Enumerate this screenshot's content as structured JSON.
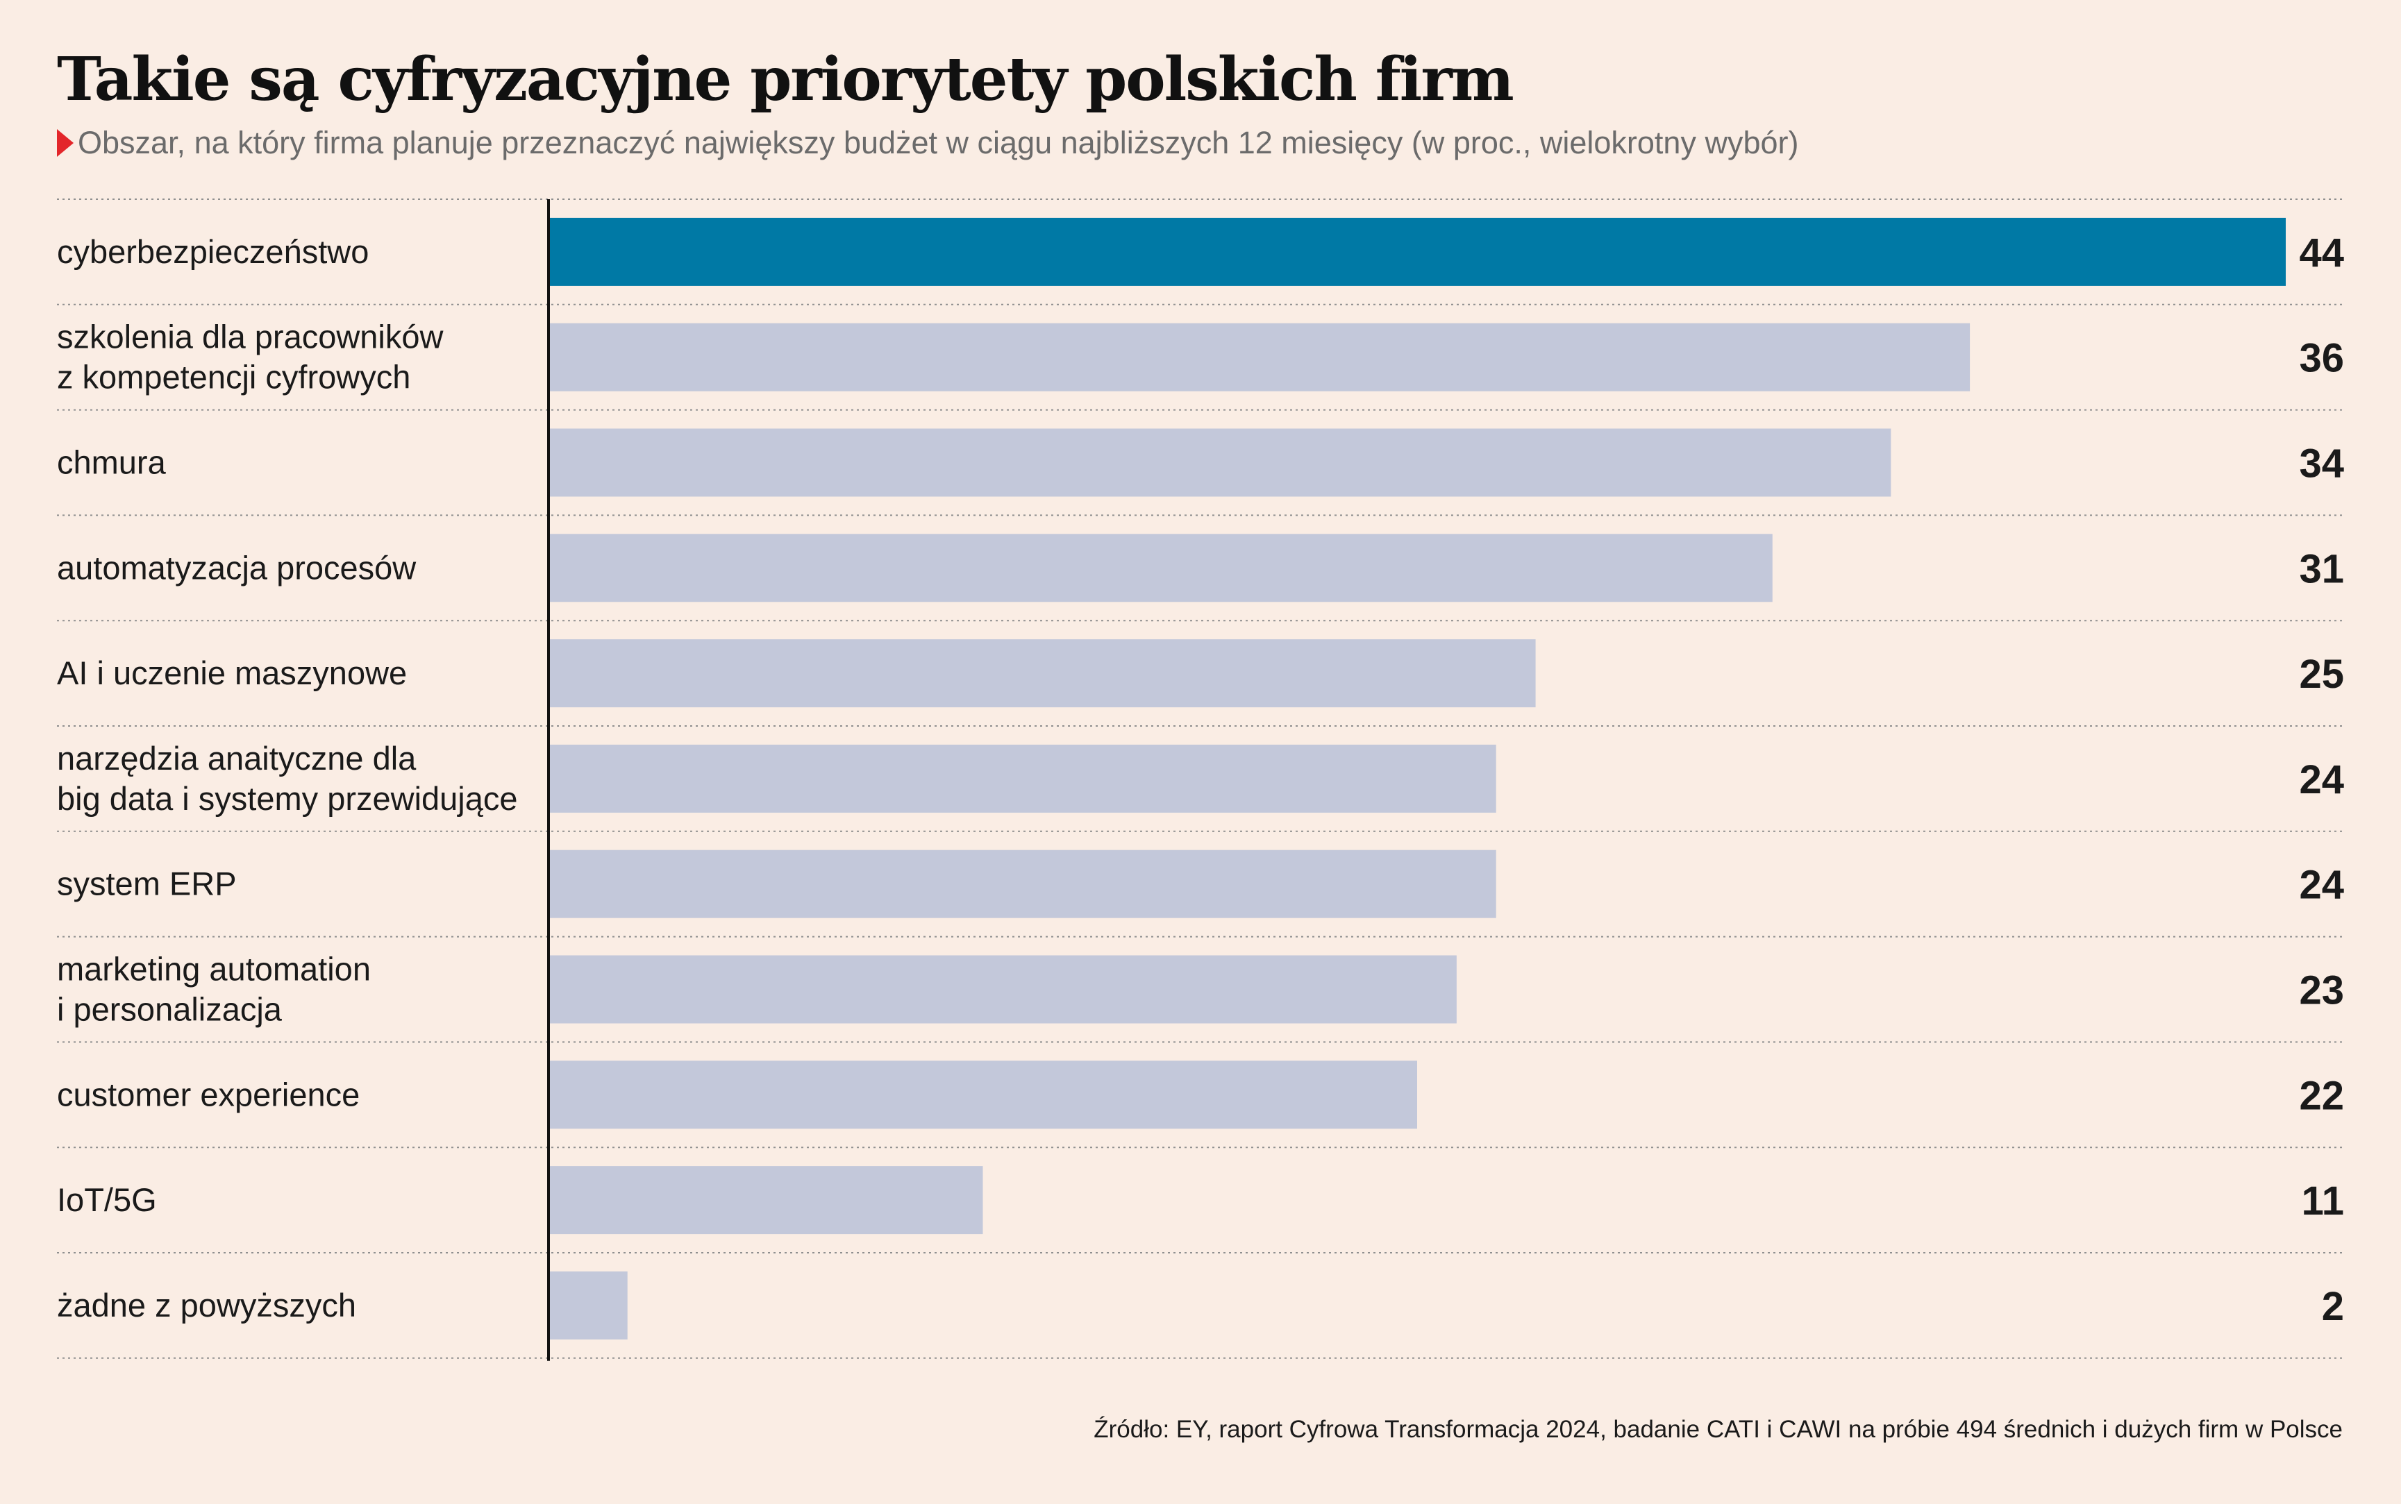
{
  "header": {
    "title": "Takie są cyfryzacyjne priorytety polskich firm",
    "subtitle": "Obszar, na który firma planuje przeznaczyć największy budżet w ciągu najbliższych 12 miesięcy (w proc., wielokrotny wybór)"
  },
  "colors": {
    "background": "#faede4",
    "highlight_bar": "#0079a5",
    "bar": "#c3c8da",
    "marker": "#e3262a"
  },
  "chart_data": {
    "type": "bar",
    "orientation": "horizontal",
    "categories": [
      [
        "cyberbezpieczeństwo"
      ],
      [
        "szkolenia dla pracowników",
        "z kompetencji cyfrowych"
      ],
      [
        "chmura"
      ],
      [
        "automatyzacja procesów"
      ],
      [
        "AI i uczenie maszynowe"
      ],
      [
        "narzędzia anaityczne dla",
        "big data i systemy przewidujące"
      ],
      [
        "system ERP"
      ],
      [
        "marketing automation",
        "i personalizacja"
      ],
      [
        "customer experience"
      ],
      [
        "IoT/5G"
      ],
      [
        "żadne z powyższych"
      ]
    ],
    "values": [
      44,
      36,
      34,
      31,
      25,
      24,
      24,
      23,
      22,
      11,
      2
    ],
    "highlighted_index": 0,
    "xlim": [
      0,
      44
    ],
    "grid": "dotted row separators",
    "legend": "none",
    "data_labels": "right"
  },
  "footer": {
    "source": "Źródło: EY, raport Cyfrowa Transformacja 2024, badanie CATI i CAWI na próbie 494 średnich i dużych firm w Polsce"
  }
}
